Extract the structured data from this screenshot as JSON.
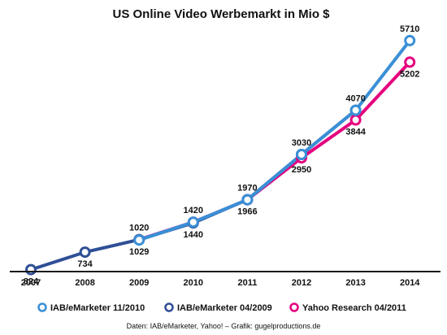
{
  "chart_data": {
    "type": "line",
    "title": "US Online Video Werbemarkt in Mio $",
    "x": [
      2007,
      2008,
      2009,
      2010,
      2011,
      2012,
      2013,
      2014
    ],
    "x_tick_labels": [
      "2007",
      "2008",
      "2009",
      "2010",
      "2011",
      "2012",
      "2013",
      "2014"
    ],
    "xlabel": "",
    "ylabel": "",
    "ylim": [
      0,
      6000
    ],
    "grid": false,
    "legend_position": "bottom",
    "series": [
      {
        "name": "Yahoo Research 04/2011",
        "color": "#e5007e",
        "values": [
          null,
          null,
          1029,
          1440,
          1966,
          2950,
          3844,
          5202
        ]
      },
      {
        "name": "IAB/eMarketer 04/2009",
        "color": "#2f4f96",
        "values": [
          324,
          734,
          1029,
          1420,
          1970,
          3030,
          4070,
          null
        ]
      },
      {
        "name": "IAB/eMarketer 11/2010",
        "color": "#3a8fd6",
        "values": [
          null,
          null,
          1020,
          1440,
          1966,
          3030,
          4070,
          5710
        ]
      }
    ],
    "data_labels": [
      {
        "x": 2007,
        "text": "324",
        "place": "below"
      },
      {
        "x": 2008,
        "text": "734",
        "place": "below"
      },
      {
        "x": 2009,
        "text": "1020",
        "place": "above"
      },
      {
        "x": 2009,
        "text": "1029",
        "place": "below"
      },
      {
        "x": 2010,
        "text": "1420",
        "place": "above"
      },
      {
        "x": 2010,
        "text": "1440",
        "place": "below"
      },
      {
        "x": 2011,
        "text": "1970",
        "place": "above"
      },
      {
        "x": 2011,
        "text": "1966",
        "place": "below"
      },
      {
        "x": 2012,
        "text": "3030",
        "place": "above"
      },
      {
        "x": 2012,
        "text": "2950",
        "place": "below"
      },
      {
        "x": 2013,
        "text": "4070",
        "place": "above"
      },
      {
        "x": 2013,
        "text": "3844",
        "place": "below"
      },
      {
        "x": 2014,
        "text": "5710",
        "place": "above"
      },
      {
        "x": 2014,
        "text": "5202",
        "place": "below"
      }
    ]
  },
  "legend": [
    {
      "label": "IAB/eMarketer 11/2010",
      "color": "#3a8fd6"
    },
    {
      "label": "IAB/eMarketer 04/2009",
      "color": "#2f4f96"
    },
    {
      "label": "Yahoo Research 04/2011",
      "color": "#e5007e"
    }
  ],
  "source": "Daten: IAB/eMarketer, Yahoo! – Grafik: gugelproductions.de"
}
